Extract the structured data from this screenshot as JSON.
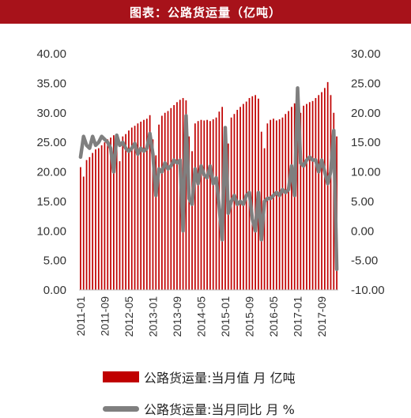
{
  "header": {
    "title": "图表：公路货运量（亿吨）"
  },
  "legend": {
    "bar_label": "公路货运量:当月值 月 亿吨",
    "line_label": "公路货运量:当月同比 月 %"
  },
  "colors": {
    "bar": "#c00000",
    "line": "#7f7f7f",
    "title_bg": "#a7121a"
  },
  "chart_data": {
    "type": "bar+line",
    "title": "公路货运量（亿吨）",
    "x_tick_labels": [
      "2011-01",
      "2011-09",
      "2012-05",
      "2013-01",
      "2013-09",
      "2014-05",
      "2015-01",
      "2015-09",
      "2016-05",
      "2017-01",
      "2017-09"
    ],
    "y_left": {
      "ticks": [
        "0.00",
        "5.00",
        "10.00",
        "15.00",
        "20.00",
        "25.00",
        "30.00",
        "35.00",
        "40.00"
      ],
      "ylim": [
        0,
        40
      ]
    },
    "y_right": {
      "ticks": [
        "-10.00",
        "-5.00",
        "0.00",
        "5.00",
        "10.00",
        "15.00",
        "20.00",
        "25.00",
        "30.00"
      ],
      "ylim": [
        -10,
        30
      ]
    },
    "categories": [
      "2011-01",
      "2011-02",
      "2011-03",
      "2011-04",
      "2011-05",
      "2011-06",
      "2011-07",
      "2011-08",
      "2011-09",
      "2011-10",
      "2011-11",
      "2011-12",
      "2012-01",
      "2012-02",
      "2012-03",
      "2012-04",
      "2012-05",
      "2012-06",
      "2012-07",
      "2012-08",
      "2012-09",
      "2012-10",
      "2012-11",
      "2012-12",
      "2013-01",
      "2013-02",
      "2013-03",
      "2013-04",
      "2013-05",
      "2013-06",
      "2013-07",
      "2013-08",
      "2013-09",
      "2013-10",
      "2013-11",
      "2013-12",
      "2014-01",
      "2014-02",
      "2014-03",
      "2014-04",
      "2014-05",
      "2014-06",
      "2014-07",
      "2014-08",
      "2014-09",
      "2014-10",
      "2014-11",
      "2014-12",
      "2015-01",
      "2015-02",
      "2015-03",
      "2015-04",
      "2015-05",
      "2015-06",
      "2015-07",
      "2015-08",
      "2015-09",
      "2015-10",
      "2015-11",
      "2015-12",
      "2016-01",
      "2016-02",
      "2016-03",
      "2016-04",
      "2016-05",
      "2016-06",
      "2016-07",
      "2016-08",
      "2016-09",
      "2016-10",
      "2016-11",
      "2016-12",
      "2017-01",
      "2017-02",
      "2017-03",
      "2017-04",
      "2017-05",
      "2017-06",
      "2017-07",
      "2017-08",
      "2017-09",
      "2017-10",
      "2017-11",
      "2017-12",
      "2018-01",
      "2018-02"
    ],
    "series": [
      {
        "name": "公路货运量:当月值 月 亿吨",
        "type": "bar",
        "axis": "left",
        "values": [
          20.8,
          19.2,
          22.0,
          22.5,
          23.2,
          23.8,
          24.0,
          24.5,
          25.0,
          25.5,
          25.8,
          26.2,
          24.0,
          21.8,
          26.0,
          26.4,
          27.0,
          27.5,
          27.8,
          28.2,
          28.5,
          28.8,
          29.0,
          29.6,
          25.5,
          22.8,
          28.0,
          29.5,
          30.0,
          30.3,
          30.8,
          31.3,
          31.8,
          32.2,
          32.5,
          32.1,
          26.0,
          23.5,
          28.2,
          28.6,
          28.8,
          28.7,
          28.8,
          28.6,
          28.9,
          29.2,
          30.2,
          31.0,
          27.5,
          24.8,
          29.2,
          29.8,
          30.5,
          31.0,
          31.5,
          31.9,
          32.5,
          32.8,
          33.0,
          32.4,
          26.8,
          24.0,
          28.2,
          28.8,
          29.0,
          28.7,
          28.9,
          29.2,
          29.8,
          30.3,
          31.0,
          31.6,
          26.5,
          30.0,
          31.2,
          31.5,
          31.8,
          32.0,
          32.5,
          33.0,
          33.5,
          34.2,
          35.2,
          33.0,
          30.0,
          26.0
        ]
      },
      {
        "name": "公路货运量:当月同比 月 %",
        "type": "line",
        "axis": "right",
        "values": [
          12.5,
          16.0,
          14.5,
          14.0,
          16.0,
          14.5,
          15.0,
          16.0,
          15.5,
          15.0,
          14.0,
          10.0,
          16.2,
          14.5,
          15.0,
          14.0,
          13.5,
          14.0,
          14.8,
          13.0,
          14.0,
          13.5,
          14.0,
          16.5,
          13.0,
          6.0,
          10.5,
          10.0,
          11.5,
          10.5,
          11.0,
          12.0,
          11.5,
          12.0,
          0.0,
          19.5,
          5.5,
          4.5,
          10.5,
          8.0,
          11.0,
          9.5,
          9.0,
          11.0,
          8.0,
          9.0,
          4.0,
          -1.5,
          17.5,
          3.0,
          5.0,
          6.0,
          4.5,
          5.0,
          4.5,
          6.0,
          6.5,
          2.0,
          0.0,
          6.5,
          -1.5,
          5.0,
          5.5,
          5.5,
          6.0,
          6.5,
          6.0,
          7.0,
          6.5,
          7.0,
          11.0,
          6.0,
          24.2,
          11.5,
          11.0,
          12.0,
          12.5,
          12.0,
          12.0,
          10.0,
          12.0,
          10.0,
          8.0,
          10.0,
          17.0,
          -6.5
        ]
      }
    ],
    "grid": false,
    "legend_position": "bottom"
  }
}
